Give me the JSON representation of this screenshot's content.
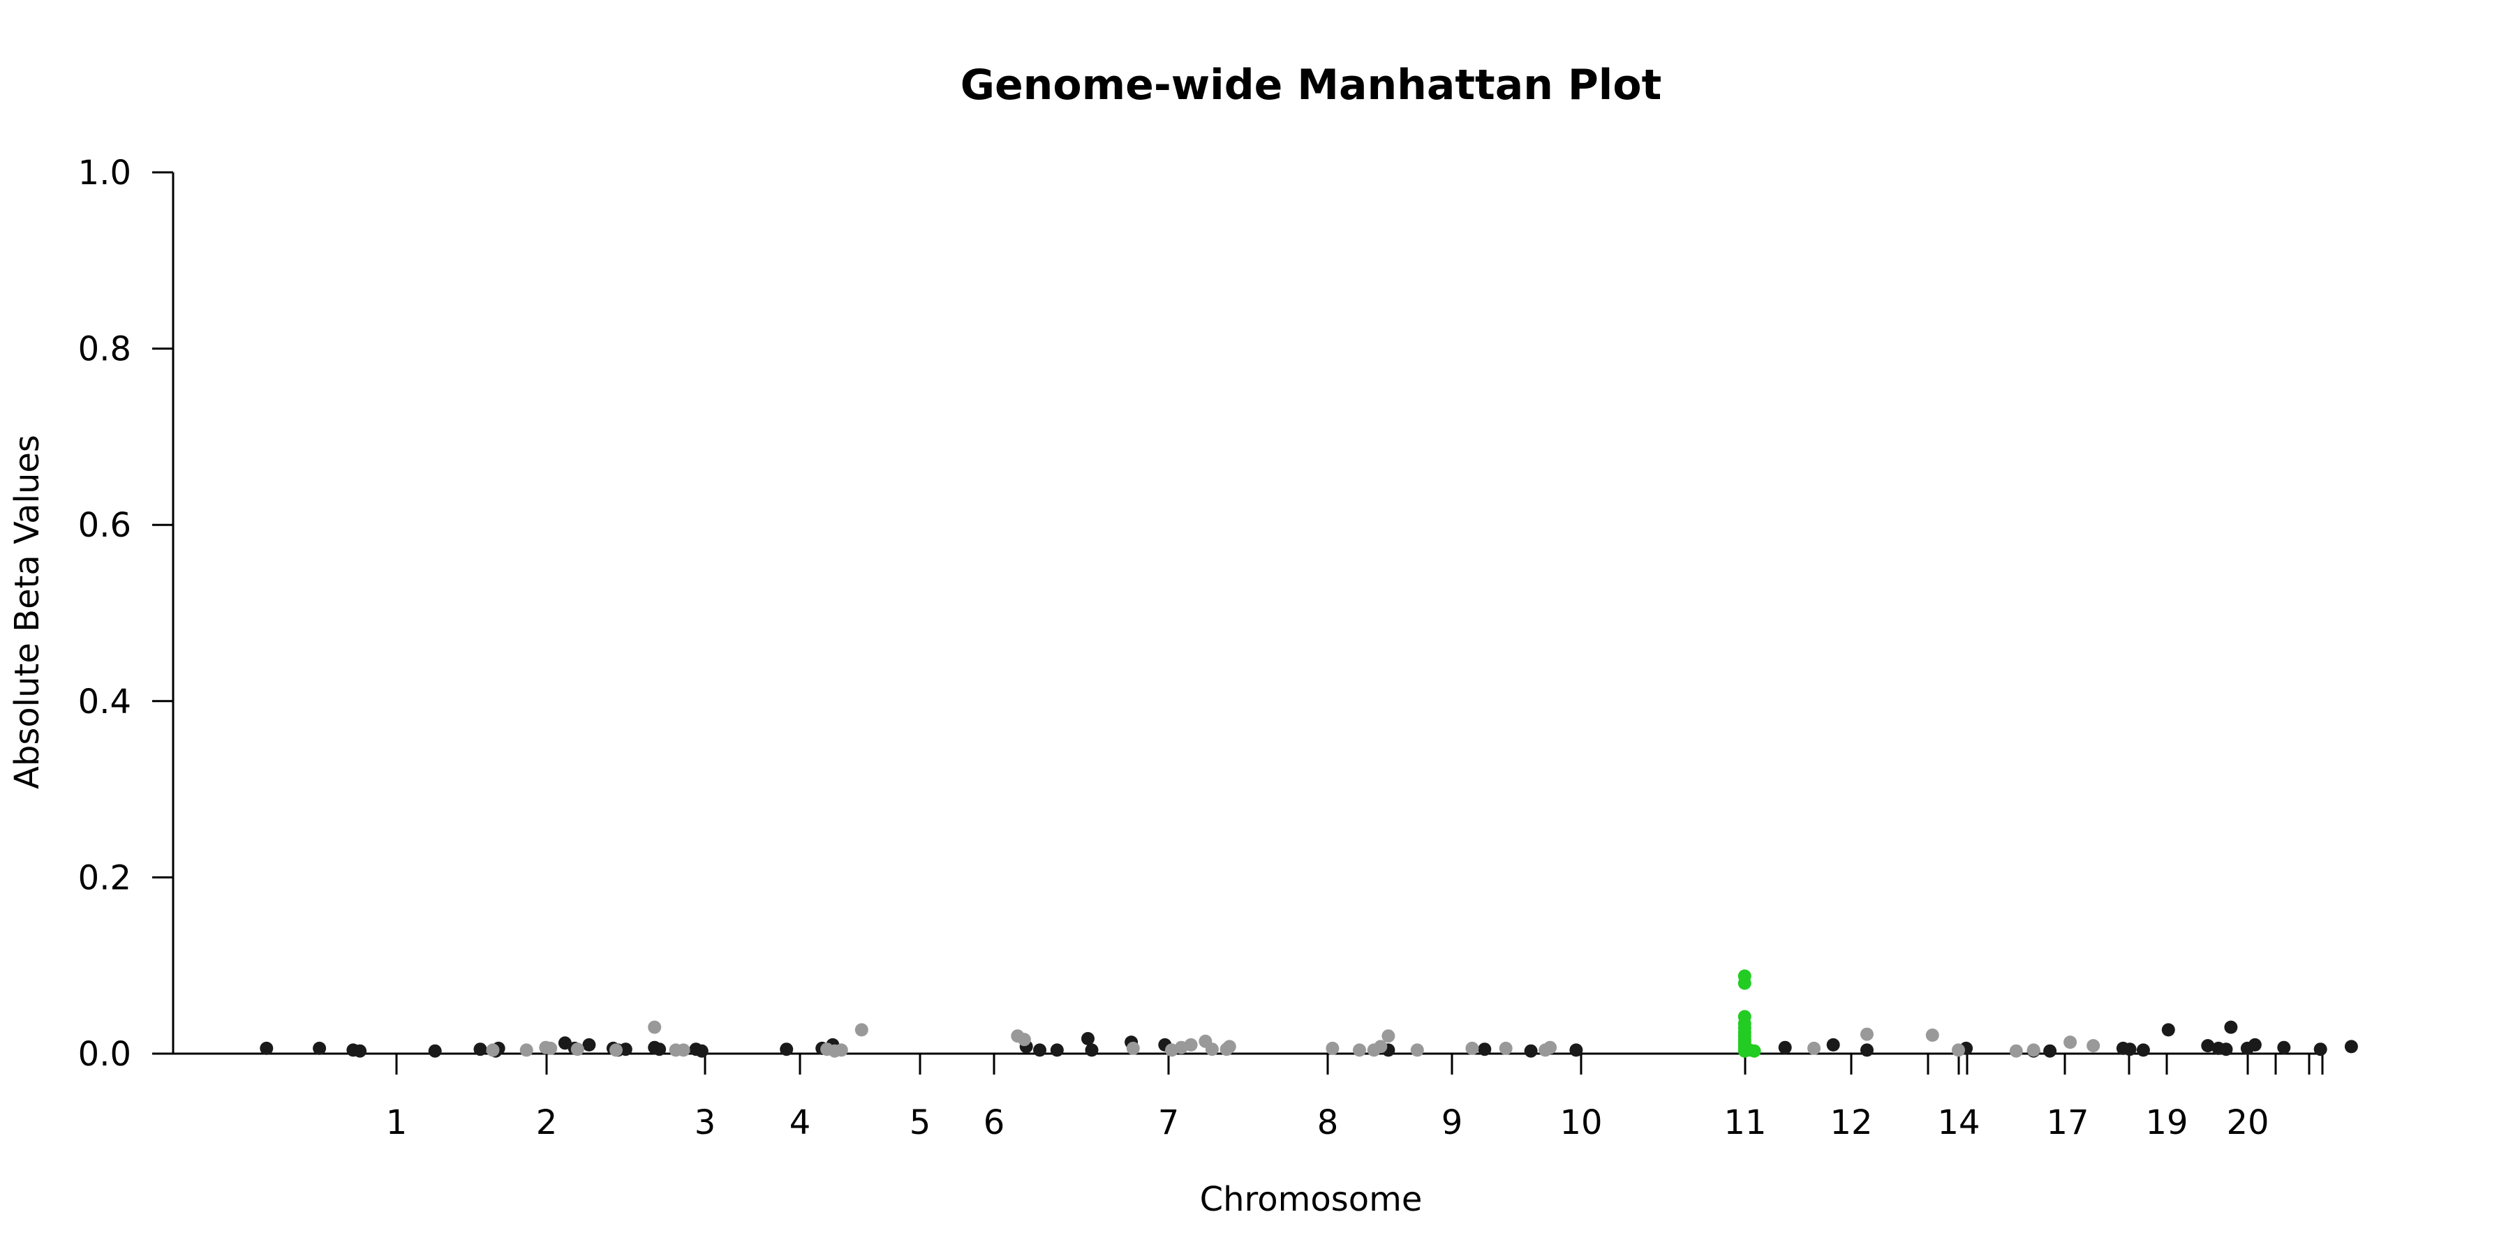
{
  "chart_data": {
    "type": "scatter",
    "title": "Genome-wide Manhattan Plot",
    "xlabel": "Chromosome",
    "ylabel": "Absolute Beta Values",
    "ylim": [
      0,
      1
    ],
    "yticks": [
      "0.0",
      "0.2",
      "0.4",
      "0.6",
      "0.8",
      "1.0"
    ],
    "xtick_labels": [
      "1",
      "2",
      "3",
      "4",
      "5",
      "6",
      "7",
      "8",
      "9",
      "10",
      "11",
      "12",
      "14",
      "17",
      "19",
      "20"
    ],
    "grid": false,
    "legend": "none",
    "colors": {
      "dark": "#1a1a1a",
      "light": "#999999",
      "highlight": "#22cc22"
    },
    "series": [
      {
        "color": "dark",
        "points": [
          [
            -1.35,
            0.006
          ],
          [
            -0.8,
            0.006
          ],
          [
            -0.45,
            0.004
          ],
          [
            -0.38,
            0.003
          ],
          [
            0.4,
            0.003
          ],
          [
            0.87,
            0.005
          ],
          [
            1.03,
            0.003
          ],
          [
            1.06,
            0.006
          ],
          [
            1.75,
            0.012
          ],
          [
            1.85,
            0.006
          ],
          [
            2.0,
            0.01
          ],
          [
            2.25,
            0.006
          ],
          [
            2.3,
            0.004
          ],
          [
            2.38,
            0.005
          ],
          [
            2.68,
            0.007
          ],
          [
            2.73,
            0.005
          ],
          [
            3.11,
            0.005
          ],
          [
            3.17,
            0.003
          ],
          [
            4.05,
            0.005
          ],
          [
            4.42,
            0.006
          ],
          [
            4.53,
            0.01
          ],
          [
            6.54,
            0.008
          ],
          [
            6.68,
            0.004
          ],
          [
            6.86,
            0.004
          ],
          [
            7.18,
            0.017
          ],
          [
            7.22,
            0.004
          ],
          [
            7.63,
            0.013
          ],
          [
            7.98,
            0.01
          ],
          [
            10.3,
            0.004
          ],
          [
            11.3,
            0.005
          ],
          [
            11.78,
            0.003
          ],
          [
            12.25,
            0.004
          ],
          [
            14.42,
            0.007
          ],
          [
            14.92,
            0.01
          ],
          [
            15.27,
            0.004
          ],
          [
            16.3,
            0.006
          ],
          [
            17.0,
            0.003
          ],
          [
            17.17,
            0.003
          ],
          [
            17.93,
            0.006
          ],
          [
            18.0,
            0.005
          ],
          [
            18.14,
            0.004
          ],
          [
            18.4,
            0.027
          ],
          [
            18.81,
            0.009
          ],
          [
            18.92,
            0.006
          ],
          [
            19.0,
            0.005
          ],
          [
            19.05,
            0.03
          ],
          [
            19.22,
            0.006
          ],
          [
            19.3,
            0.01
          ],
          [
            19.6,
            0.007
          ],
          [
            19.98,
            0.005
          ],
          [
            20.3,
            0.008
          ]
        ]
      },
      {
        "color": "light",
        "points": [
          [
            1.0,
            0.004
          ],
          [
            1.35,
            0.004
          ],
          [
            1.55,
            0.007
          ],
          [
            1.6,
            0.006
          ],
          [
            1.88,
            0.005
          ],
          [
            2.28,
            0.004
          ],
          [
            2.68,
            0.03
          ],
          [
            2.9,
            0.004
          ],
          [
            2.98,
            0.004
          ],
          [
            4.47,
            0.005
          ],
          [
            4.55,
            0.003
          ],
          [
            4.62,
            0.004
          ],
          [
            4.83,
            0.027
          ],
          [
            6.45,
            0.02
          ],
          [
            6.52,
            0.016
          ],
          [
            7.65,
            0.006
          ],
          [
            8.05,
            0.004
          ],
          [
            8.15,
            0.007
          ],
          [
            8.25,
            0.01
          ],
          [
            8.4,
            0.014
          ],
          [
            8.47,
            0.005
          ],
          [
            8.62,
            0.005
          ],
          [
            8.65,
            0.008
          ],
          [
            9.72,
            0.006
          ],
          [
            10.0,
            0.004
          ],
          [
            10.15,
            0.004
          ],
          [
            10.22,
            0.008
          ],
          [
            10.3,
            0.02
          ],
          [
            10.6,
            0.004
          ],
          [
            11.17,
            0.006
          ],
          [
            11.52,
            0.006
          ],
          [
            11.93,
            0.004
          ],
          [
            11.98,
            0.007
          ],
          [
            14.72,
            0.006
          ],
          [
            15.27,
            0.022
          ],
          [
            15.95,
            0.021
          ],
          [
            16.22,
            0.004
          ],
          [
            16.82,
            0.003
          ],
          [
            17.0,
            0.004
          ],
          [
            17.38,
            0.013
          ],
          [
            17.62,
            0.009
          ]
        ]
      },
      {
        "color": "highlight",
        "points": [
          [
            14.0,
            0.088
          ],
          [
            14.0,
            0.08
          ],
          [
            14.0,
            0.042
          ],
          [
            14.0,
            0.034
          ],
          [
            14.0,
            0.029
          ],
          [
            14.0,
            0.024
          ],
          [
            14.0,
            0.02
          ],
          [
            14.0,
            0.016
          ],
          [
            14.0,
            0.013
          ],
          [
            14.0,
            0.01
          ],
          [
            14.0,
            0.007
          ],
          [
            14.0,
            0.005
          ],
          [
            14.0,
            0.003
          ],
          [
            14.05,
            0.004
          ],
          [
            14.1,
            0.003
          ]
        ]
      }
    ]
  }
}
